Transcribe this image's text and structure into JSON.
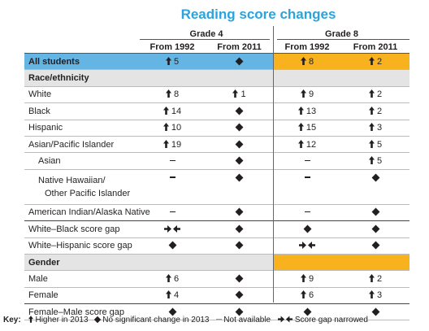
{
  "title": "Reading score changes",
  "grade4_label": "Grade 4",
  "grade8_label": "Grade 8",
  "columns": [
    "From 1992",
    "From 2011",
    "From 1992",
    "From 2011"
  ],
  "rows": [
    {
      "kind": "data",
      "label": "All students",
      "style": "all",
      "cells": [
        "up 5",
        "nc",
        "up 8",
        "up 2"
      ]
    },
    {
      "kind": "section",
      "label": "Race/ethnicity",
      "g8_orange": false
    },
    {
      "kind": "data",
      "label": "White",
      "cells": [
        "up 8",
        "up 1",
        "up 9",
        "up 2"
      ]
    },
    {
      "kind": "data",
      "label": "Black",
      "cells": [
        "up 14",
        "nc",
        "up 13",
        "up 2"
      ]
    },
    {
      "kind": "data",
      "label": "Hispanic",
      "cells": [
        "up 10",
        "nc",
        "up 15",
        "up 3"
      ]
    },
    {
      "kind": "data",
      "label": "Asian/Pacific Islander",
      "cells": [
        "up 19",
        "nc",
        "up 12",
        "up 5"
      ]
    },
    {
      "kind": "data",
      "label": "Asian",
      "indent": true,
      "cells": [
        "na",
        "nc",
        "na",
        "up 5"
      ]
    },
    {
      "kind": "data",
      "label": "Native Hawaiian/",
      "label2": "Other Pacific Islander",
      "indent": true,
      "tall": true,
      "cells": [
        "na",
        "nc",
        "na",
        "nc"
      ]
    },
    {
      "kind": "data",
      "label": "American Indian/Alaska Native",
      "sep": true,
      "cells": [
        "na",
        "nc",
        "na",
        "nc"
      ]
    },
    {
      "kind": "data",
      "label": "White–Black score gap",
      "cells": [
        "narrowed",
        "nc",
        "nc",
        "nc"
      ]
    },
    {
      "kind": "data",
      "label": "White–Hispanic score gap",
      "cells": [
        "nc",
        "nc",
        "narrowed",
        "nc"
      ]
    },
    {
      "kind": "section",
      "label": "Gender",
      "g8_orange": true
    },
    {
      "kind": "data",
      "label": "Male",
      "cells": [
        "up 6",
        "nc",
        "up 9",
        "up 2"
      ]
    },
    {
      "kind": "data",
      "label": "Female",
      "sep": true,
      "cells": [
        "up 4",
        "nc",
        "up 6",
        "up 3"
      ]
    },
    {
      "kind": "data",
      "label": "Female–Male score gap",
      "cells": [
        "nc",
        "nc",
        "nc",
        "nc"
      ]
    }
  ],
  "key": {
    "label": "Key:",
    "higher": "Higher in 2013",
    "no_change": "No significant change in 2013",
    "not_available": "Not available",
    "narrowed": "Score gap narrowed"
  },
  "icon_names": {
    "up": "up-arrow-icon",
    "nc": "diamond-icon",
    "na": "dash-icon",
    "narrowed": "gap-narrowed-icon"
  },
  "colors": {
    "title": "#2ba3dc",
    "grade4_highlight": "#65b5e4",
    "grade8_highlight": "#f7b21e",
    "section_row": "#e4e4e4"
  }
}
